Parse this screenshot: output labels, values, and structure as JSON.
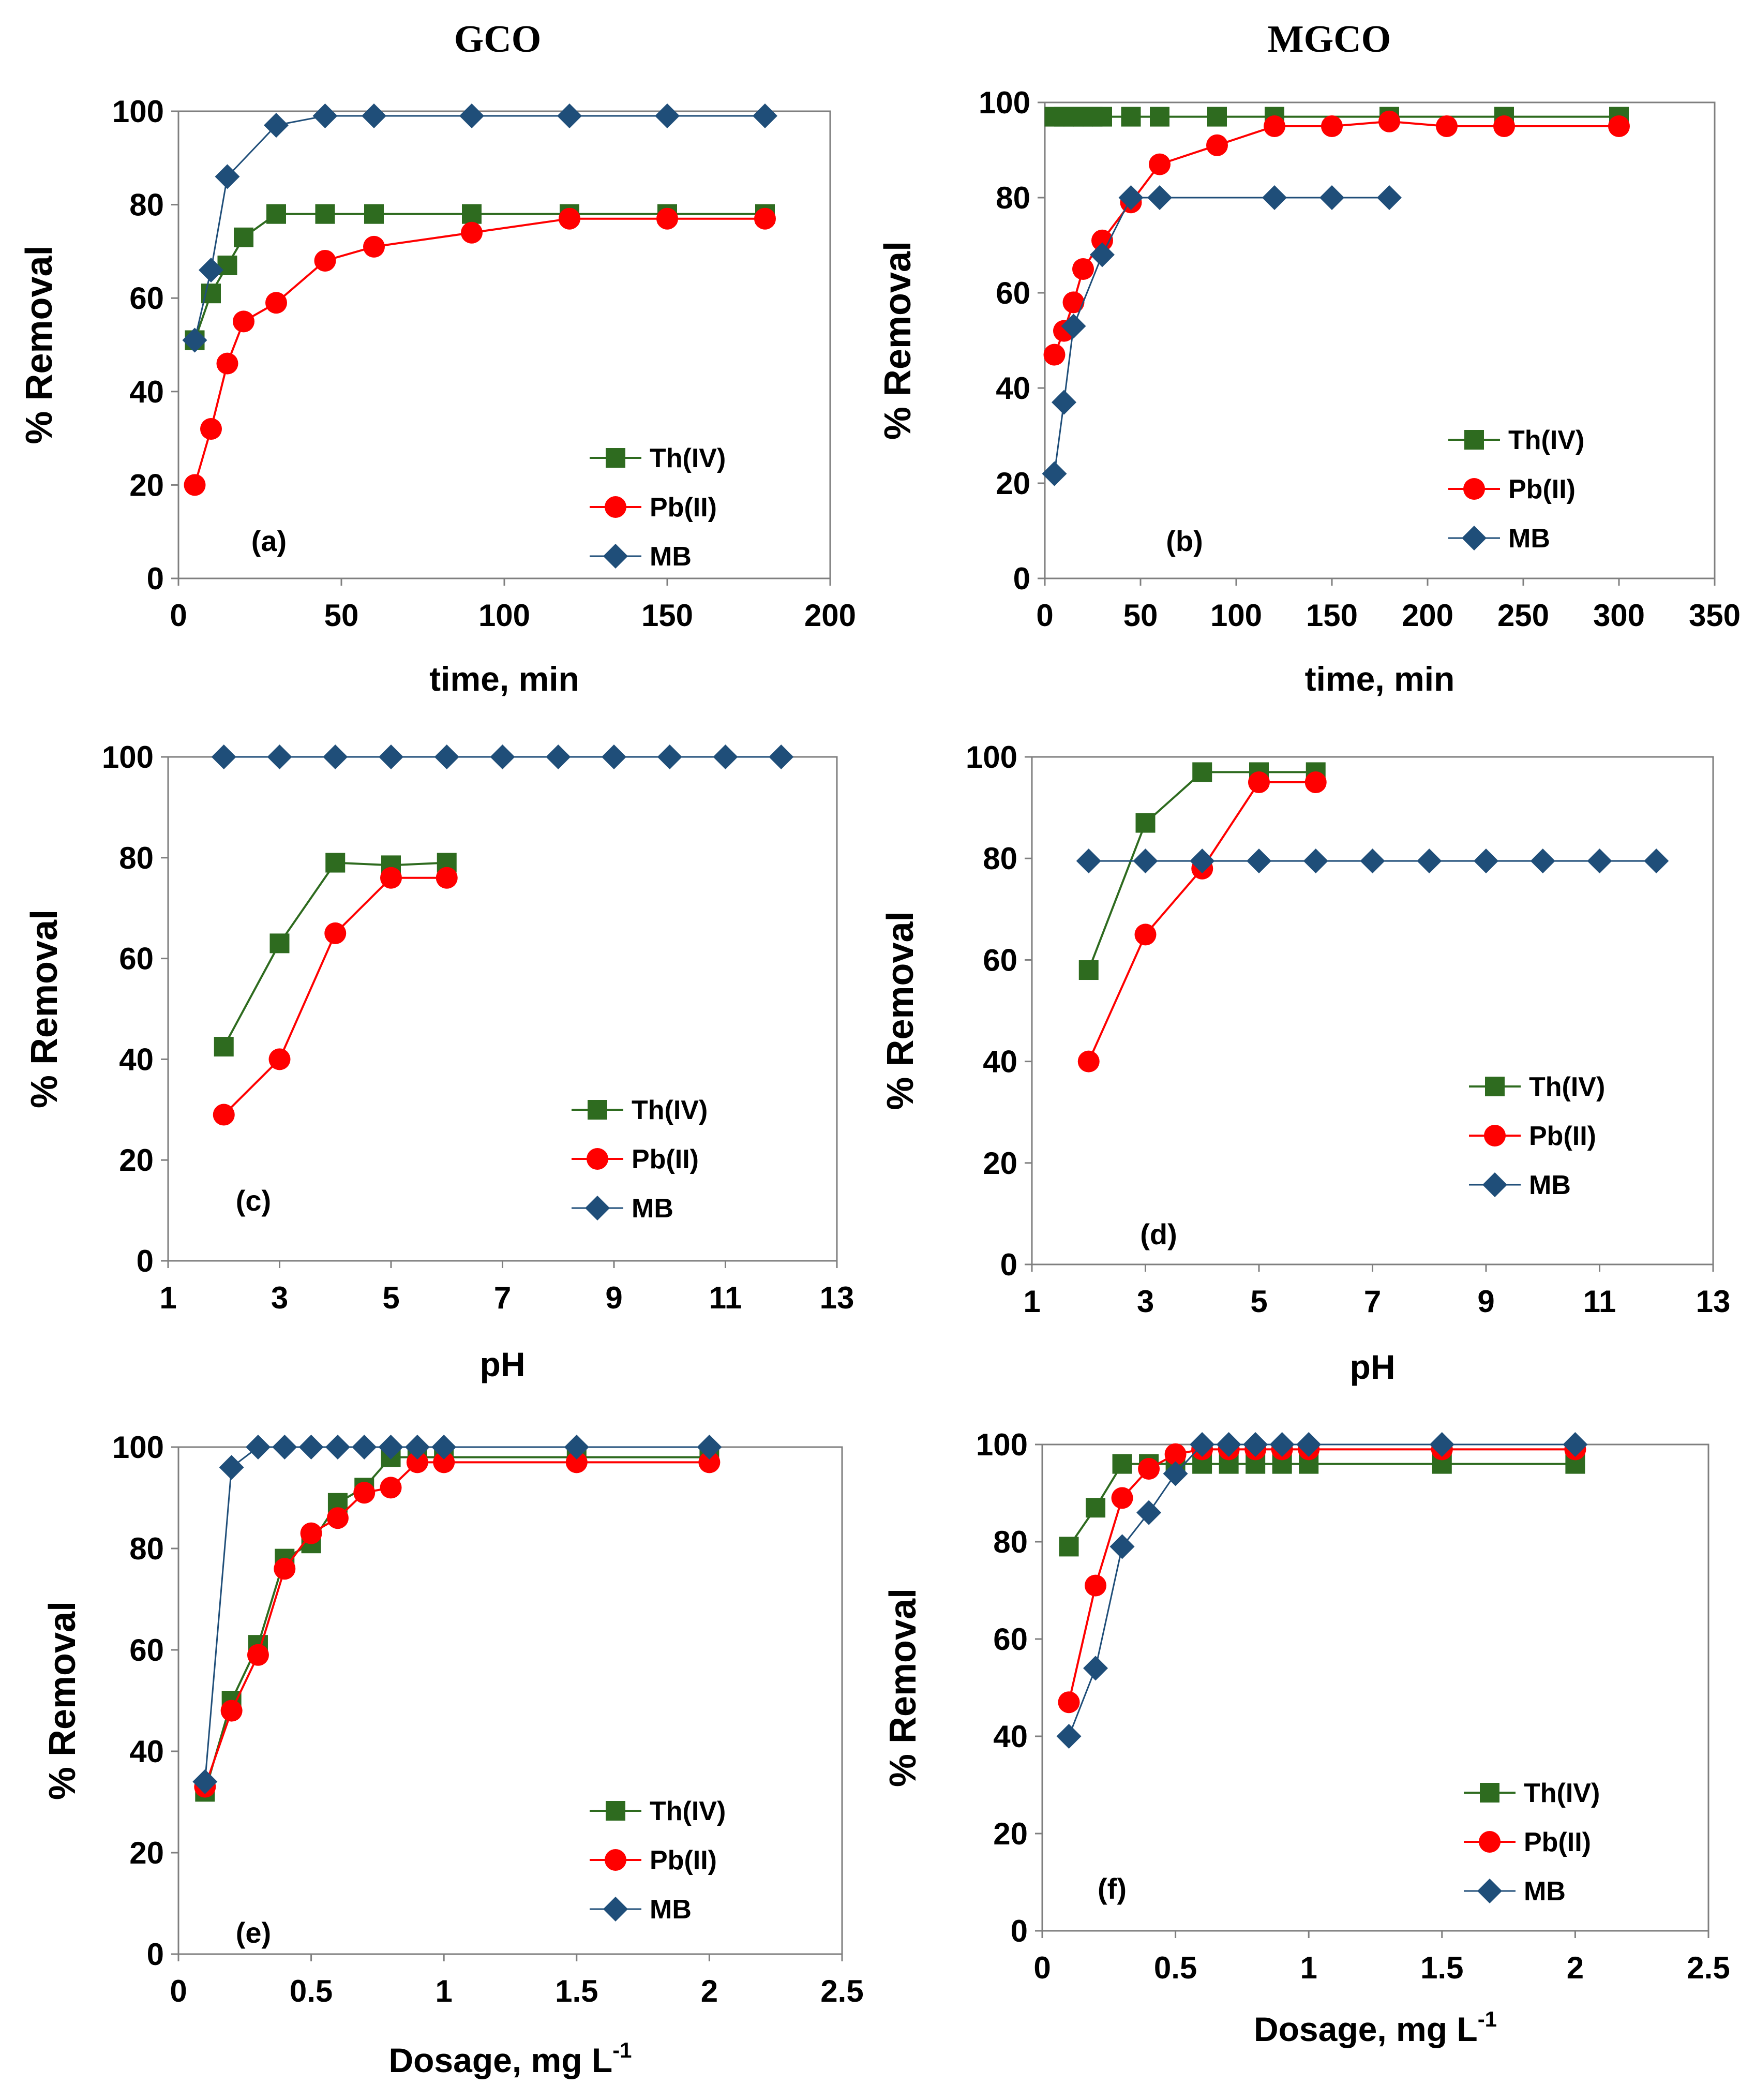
{
  "figure": {
    "titles": [
      "GCO",
      "MGCO"
    ],
    "colors": {
      "th": "#2e6b1f",
      "pb": "#ff0000",
      "mb": "#1f4e79"
    }
  },
  "chart_data": [
    {
      "type": "line",
      "panel": "(a)",
      "xlabel": "time, min",
      "ylabel": "% Removal",
      "xlim": [
        0,
        200
      ],
      "ylim": [
        0,
        100
      ],
      "xticks": [
        0,
        50,
        100,
        150,
        200
      ],
      "yticks": [
        0,
        20,
        40,
        60,
        80,
        100
      ],
      "legend": "bottom-right",
      "series": [
        {
          "name": "Th(IV)",
          "marker": "square",
          "x": [
            5,
            10,
            15,
            20,
            30,
            45,
            60,
            90,
            120,
            150,
            180
          ],
          "y": [
            51,
            61,
            67,
            73,
            78,
            78,
            78,
            78,
            78,
            78,
            78
          ]
        },
        {
          "name": "Pb(II)",
          "marker": "circle",
          "x": [
            5,
            10,
            15,
            20,
            30,
            45,
            60,
            90,
            120,
            150,
            180
          ],
          "y": [
            20,
            32,
            46,
            55,
            59,
            68,
            71,
            74,
            77,
            77,
            77
          ]
        },
        {
          "name": "MB",
          "marker": "diamond",
          "x": [
            5,
            10,
            15,
            30,
            45,
            60,
            90,
            120,
            150,
            180
          ],
          "y": [
            51,
            66,
            86,
            97,
            99,
            99,
            99,
            99,
            99,
            99
          ]
        }
      ]
    },
    {
      "type": "line",
      "panel": "(b)",
      "xlabel": "time, min",
      "ylabel": "% Removal",
      "xlim": [
        0,
        350
      ],
      "ylim": [
        0,
        100
      ],
      "xticks": [
        0,
        50,
        100,
        150,
        200,
        250,
        300,
        350
      ],
      "yticks": [
        0,
        20,
        40,
        60,
        80,
        100
      ],
      "legend": "bottom-right",
      "series": [
        {
          "name": "Th(IV)",
          "marker": "square",
          "x": [
            5,
            10,
            15,
            20,
            25,
            30,
            45,
            60,
            90,
            120,
            180,
            240,
            300
          ],
          "y": [
            97,
            97,
            97,
            97,
            97,
            97,
            97,
            97,
            97,
            97,
            97,
            97,
            97
          ]
        },
        {
          "name": "Pb(II)",
          "marker": "circle",
          "x": [
            5,
            10,
            15,
            20,
            30,
            45,
            60,
            90,
            120,
            150,
            180,
            210,
            240,
            300
          ],
          "y": [
            47,
            52,
            58,
            65,
            71,
            79,
            87,
            91,
            95,
            95,
            96,
            95,
            95,
            95
          ]
        },
        {
          "name": "MB",
          "marker": "diamond",
          "x": [
            5,
            10,
            15,
            30,
            45,
            60,
            120,
            150,
            180
          ],
          "y": [
            22,
            37,
            53,
            68,
            80,
            80,
            80,
            80,
            80
          ]
        }
      ]
    },
    {
      "type": "line",
      "panel": "(c)",
      "xlabel": "pH",
      "ylabel": "% Removal",
      "xlim": [
        1,
        13
      ],
      "ylim": [
        0,
        100
      ],
      "xticks": [
        1,
        3,
        5,
        7,
        9,
        11,
        13
      ],
      "yticks": [
        0,
        20,
        40,
        60,
        80,
        100
      ],
      "legend": "bottom-right",
      "series": [
        {
          "name": "Th(IV)",
          "marker": "square",
          "x": [
            2,
            3,
            4,
            5,
            6
          ],
          "y": [
            42.5,
            63,
            79,
            78.5,
            79
          ]
        },
        {
          "name": "Pb(II)",
          "marker": "circle",
          "x": [
            2,
            3,
            4,
            5,
            6
          ],
          "y": [
            29,
            40,
            65,
            76,
            76
          ]
        },
        {
          "name": "MB",
          "marker": "diamond",
          "x": [
            2,
            3,
            4,
            5,
            6,
            7,
            8,
            9,
            10,
            11,
            12
          ],
          "y": [
            100,
            100,
            100,
            100,
            100,
            100,
            100,
            100,
            100,
            100,
            100
          ]
        }
      ]
    },
    {
      "type": "line",
      "panel": "(d)",
      "xlabel": "pH",
      "ylabel": "% Removal",
      "xlim": [
        1,
        13
      ],
      "ylim": [
        0,
        100
      ],
      "xticks": [
        1,
        3,
        5,
        7,
        9,
        11,
        13
      ],
      "yticks": [
        0,
        20,
        40,
        60,
        80,
        100
      ],
      "legend": "bottom-right",
      "series": [
        {
          "name": "Th(IV)",
          "marker": "square",
          "x": [
            2,
            3,
            4,
            5,
            6
          ],
          "y": [
            58,
            87,
            97,
            97,
            97
          ]
        },
        {
          "name": "Pb(II)",
          "marker": "circle",
          "x": [
            2,
            3,
            4,
            5,
            6
          ],
          "y": [
            40,
            65,
            78,
            95,
            95
          ]
        },
        {
          "name": "MB",
          "marker": "diamond",
          "x": [
            2,
            3,
            4,
            5,
            6,
            7,
            8,
            9,
            10,
            11,
            12
          ],
          "y": [
            79.5,
            79.5,
            79.5,
            79.5,
            79.5,
            79.5,
            79.5,
            79.5,
            79.5,
            79.5,
            79.5
          ]
        }
      ]
    },
    {
      "type": "line",
      "panel": "(e)",
      "xlabel": "Dosage, mg L",
      "xlabel_sup": "-1",
      "ylabel": "% Removal",
      "xlim": [
        0,
        2.5
      ],
      "ylim": [
        0,
        100
      ],
      "xticks": [
        0,
        0.5,
        1,
        1.5,
        2,
        2.5
      ],
      "xtick_labels": [
        "0",
        "0.5",
        "1",
        "1.5",
        "2",
        "2.5"
      ],
      "yticks": [
        0,
        20,
        40,
        60,
        80,
        100
      ],
      "legend": "bottom-right",
      "series": [
        {
          "name": "Th(IV)",
          "marker": "square",
          "x": [
            0.1,
            0.2,
            0.3,
            0.4,
            0.5,
            0.6,
            0.7,
            0.8,
            0.9,
            1,
            1.5,
            2
          ],
          "y": [
            32,
            50,
            61,
            78,
            81,
            89,
            92,
            98,
            98,
            98,
            98,
            98
          ]
        },
        {
          "name": "Pb(II)",
          "marker": "circle",
          "x": [
            0.1,
            0.2,
            0.3,
            0.4,
            0.5,
            0.6,
            0.7,
            0.8,
            0.9,
            1,
            1.5,
            2
          ],
          "y": [
            33,
            48,
            59,
            76,
            83,
            86,
            91,
            92,
            97,
            97,
            97,
            97
          ]
        },
        {
          "name": "MB",
          "marker": "diamond",
          "x": [
            0.1,
            0.2,
            0.3,
            0.4,
            0.5,
            0.6,
            0.7,
            0.8,
            0.9,
            1,
            1.5,
            2
          ],
          "y": [
            34,
            96,
            100,
            100,
            100,
            100,
            100,
            100,
            100,
            100,
            100,
            100
          ]
        }
      ]
    },
    {
      "type": "line",
      "panel": "(f)",
      "xlabel": "Dosage, mg L",
      "xlabel_sup": "-1",
      "ylabel": "% Removal",
      "xlim": [
        0,
        2.5
      ],
      "ylim": [
        0,
        100
      ],
      "xticks": [
        0,
        0.5,
        1,
        1.5,
        2,
        2.5
      ],
      "xtick_labels": [
        "0",
        "0.5",
        "1",
        "1.5",
        "2",
        "2.5"
      ],
      "yticks": [
        0,
        20,
        40,
        60,
        80,
        100
      ],
      "legend": "bottom-right",
      "series": [
        {
          "name": "Th(IV)",
          "marker": "square",
          "x": [
            0.1,
            0.2,
            0.3,
            0.4,
            0.5,
            0.6,
            0.7,
            0.8,
            0.9,
            1,
            1.5,
            2
          ],
          "y": [
            79,
            87,
            96,
            96,
            96,
            96,
            96,
            96,
            96,
            96,
            96,
            96
          ]
        },
        {
          "name": "Pb(II)",
          "marker": "circle",
          "x": [
            0.1,
            0.2,
            0.3,
            0.4,
            0.5,
            0.6,
            0.7,
            0.8,
            0.9,
            1,
            1.5,
            2
          ],
          "y": [
            47,
            71,
            89,
            95,
            98,
            99,
            99,
            99,
            99,
            99,
            99,
            99
          ]
        },
        {
          "name": "MB",
          "marker": "diamond",
          "x": [
            0.1,
            0.2,
            0.3,
            0.4,
            0.5,
            0.6,
            0.7,
            0.8,
            0.9,
            1,
            1.5,
            2
          ],
          "y": [
            40,
            54,
            79,
            86,
            94,
            100,
            100,
            100,
            100,
            100,
            100,
            100
          ]
        }
      ]
    }
  ]
}
